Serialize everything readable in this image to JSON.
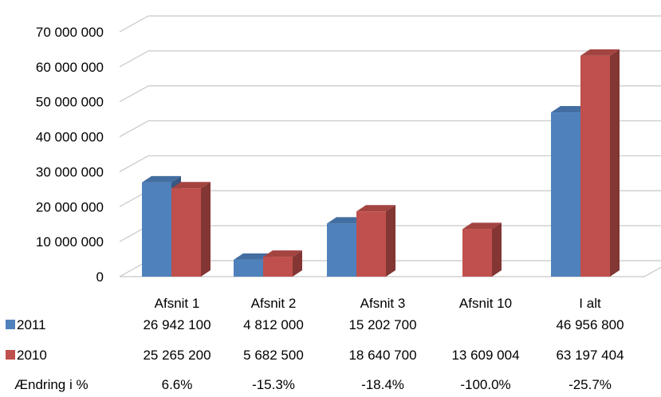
{
  "chart_data": {
    "type": "bar",
    "categories": [
      "Afsnit 1",
      "Afsnit 2",
      "Afsnit 3",
      "Afsnit 10",
      "I alt"
    ],
    "series": [
      {
        "name": "2011",
        "color": "#4f81bd",
        "values": [
          26942100,
          4812000,
          15202700,
          null,
          46956800
        ],
        "labels": [
          "26 942 100",
          "4 812 000",
          "15 202 700",
          "",
          "46 956 800"
        ]
      },
      {
        "name": "2010",
        "color": "#c0504d",
        "values": [
          25265200,
          5682500,
          18640700,
          13609004,
          63197404
        ],
        "labels": [
          "25 265 200",
          "5 682 500",
          "18 640 700",
          "13 609 004",
          "63 197 404"
        ]
      }
    ],
    "change_row": {
      "label": "Ændring i %",
      "values": [
        "6.6%",
        "-15.3%",
        "-18.4%",
        "-100.0%",
        "-25.7%"
      ]
    },
    "y_ticks": [
      "0",
      "10 000 000",
      "20 000 000",
      "30 000 000",
      "40 000 000",
      "50 000 000",
      "60 000 000",
      "70 000 000"
    ],
    "ylim": [
      0,
      70000000
    ],
    "grid": true,
    "style": "3d-clustered-column",
    "legend_placement": "data-table"
  }
}
